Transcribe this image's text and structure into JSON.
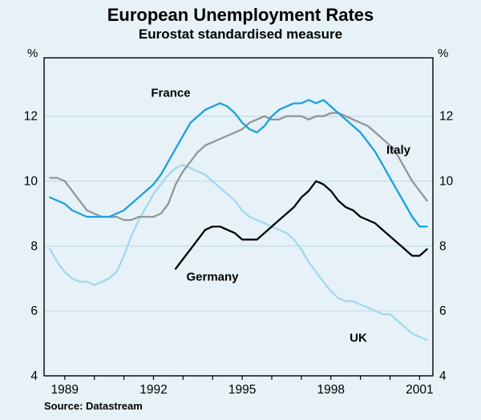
{
  "chart_data": {
    "type": "line",
    "title": "European Unemployment Rates",
    "subtitle": "Eurostat standardised measure",
    "source": "Source: Datastream",
    "y_unit": "%",
    "xlim": [
      1988.3,
      2001.45
    ],
    "ylim": [
      4,
      13.8
    ],
    "yticks": [
      4,
      6,
      8,
      10,
      12
    ],
    "gridlines": [
      6,
      8,
      10,
      12
    ],
    "xticks": [
      1989,
      1992,
      1995,
      1998,
      2001
    ],
    "xtick_minor": {
      "start": 1989,
      "end": 2001,
      "step": 1
    },
    "draw_order": [
      3,
      1,
      0,
      2
    ],
    "colors": {
      "background": "#e6f2f8",
      "grid": "#c3d9e3",
      "axis": "#000000",
      "france": "#1ba0dc",
      "italy": "#939598",
      "germany": "#000000",
      "uk": "#a3d7ec"
    },
    "series": [
      {
        "name": "France",
        "color": "#1ba0dc",
        "x_start": 1988.5,
        "x_step": 0.25,
        "values": [
          9.5,
          9.4,
          9.3,
          9.1,
          9.0,
          8.9,
          8.9,
          8.9,
          8.9,
          9.0,
          9.1,
          9.3,
          9.5,
          9.7,
          9.9,
          10.2,
          10.6,
          11.0,
          11.4,
          11.8,
          12.0,
          12.2,
          12.3,
          12.4,
          12.3,
          12.1,
          11.8,
          11.6,
          11.5,
          11.7,
          12.0,
          12.2,
          12.3,
          12.4,
          12.4,
          12.5,
          12.4,
          12.5,
          12.3,
          12.1,
          11.9,
          11.7,
          11.5,
          11.2,
          10.9,
          10.5,
          10.1,
          9.7,
          9.3,
          8.9,
          8.6,
          8.6
        ]
      },
      {
        "name": "Italy",
        "color": "#939598",
        "x_start": 1988.5,
        "x_step": 0.25,
        "values": [
          10.1,
          10.1,
          10.0,
          9.7,
          9.4,
          9.1,
          9.0,
          8.9,
          8.9,
          8.9,
          8.8,
          8.8,
          8.9,
          8.9,
          8.9,
          9.0,
          9.3,
          9.9,
          10.3,
          10.6,
          10.9,
          11.1,
          11.2,
          11.3,
          11.4,
          11.5,
          11.6,
          11.8,
          11.9,
          12.0,
          11.9,
          11.9,
          12.0,
          12.0,
          12.0,
          11.9,
          12.0,
          12.0,
          12.1,
          12.1,
          12.0,
          11.9,
          11.8,
          11.7,
          11.5,
          11.3,
          11.1,
          10.8,
          10.4,
          10.0,
          9.7,
          9.4
        ]
      },
      {
        "name": "Germany",
        "color": "#000000",
        "x_start": 1992.75,
        "x_step": 0.25,
        "values": [
          7.3,
          7.6,
          7.9,
          8.2,
          8.5,
          8.6,
          8.6,
          8.5,
          8.4,
          8.2,
          8.2,
          8.2,
          8.4,
          8.6,
          8.8,
          9.0,
          9.2,
          9.5,
          9.7,
          10.0,
          9.9,
          9.7,
          9.4,
          9.2,
          9.1,
          8.9,
          8.8,
          8.7,
          8.5,
          8.3,
          8.1,
          7.9,
          7.7,
          7.7,
          7.9
        ]
      },
      {
        "name": "UK",
        "color": "#a3d7ec",
        "x_start": 1988.5,
        "x_step": 0.25,
        "values": [
          7.9,
          7.5,
          7.2,
          7.0,
          6.9,
          6.9,
          6.8,
          6.9,
          7.0,
          7.2,
          7.7,
          8.3,
          8.8,
          9.2,
          9.6,
          9.9,
          10.2,
          10.4,
          10.5,
          10.4,
          10.3,
          10.2,
          10.0,
          9.8,
          9.6,
          9.4,
          9.1,
          8.9,
          8.8,
          8.7,
          8.6,
          8.5,
          8.4,
          8.2,
          7.9,
          7.5,
          7.2,
          6.9,
          6.6,
          6.4,
          6.3,
          6.3,
          6.2,
          6.1,
          6.0,
          5.9,
          5.9,
          5.7,
          5.5,
          5.3,
          5.2,
          5.1
        ]
      }
    ]
  }
}
